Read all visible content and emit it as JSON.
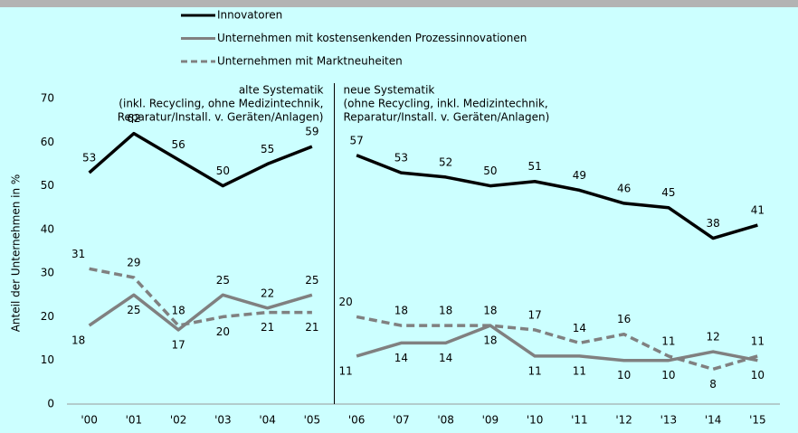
{
  "chart_data": {
    "type": "line",
    "y_label": "Anteil der Unternehmen in %",
    "ylim": [
      0,
      70
    ],
    "yticks": [
      0,
      10,
      20,
      30,
      40,
      50,
      60,
      70
    ],
    "sections": [
      {
        "annotation": [
          "alte Systematik",
          "(inkl. Recycling, ohne Medizintechnik,",
          "Reparatur/Install. v. Geräten/Anlagen)"
        ],
        "categories": [
          "'00",
          "'01",
          "'02",
          "'03",
          "'04",
          "'05"
        ]
      },
      {
        "annotation": [
          "neue Systematik",
          "(ohne Recycling, inkl. Medizintechnik,",
          "Reparatur/Install. v. Geräten/Anlagen)"
        ],
        "categories": [
          "'06",
          "'07",
          "'08",
          "'09",
          "'10",
          "'11",
          "'12",
          "'13",
          "'14",
          "'15"
        ]
      }
    ],
    "series": [
      {
        "name": "Innovatoren",
        "color": "#000000",
        "dash": false,
        "values": [
          [
            53,
            62,
            56,
            50,
            55,
            59
          ],
          [
            57,
            53,
            52,
            50,
            51,
            49,
            46,
            45,
            38,
            41
          ]
        ]
      },
      {
        "name": "Unternehmen mit kostensenkenden Prozessinnovationen",
        "color": "#808080",
        "dash": false,
        "values": [
          [
            18,
            25,
            17,
            25,
            22,
            25
          ],
          [
            11,
            14,
            14,
            18,
            11,
            11,
            10,
            10,
            12,
            10
          ]
        ]
      },
      {
        "name": "Unternehmen mit Marktneuheiten",
        "color": "#808080",
        "dash": true,
        "values": [
          [
            31,
            29,
            18,
            20,
            21,
            21
          ],
          [
            20,
            18,
            18,
            18,
            17,
            14,
            16,
            11,
            8,
            11
          ]
        ]
      }
    ]
  }
}
